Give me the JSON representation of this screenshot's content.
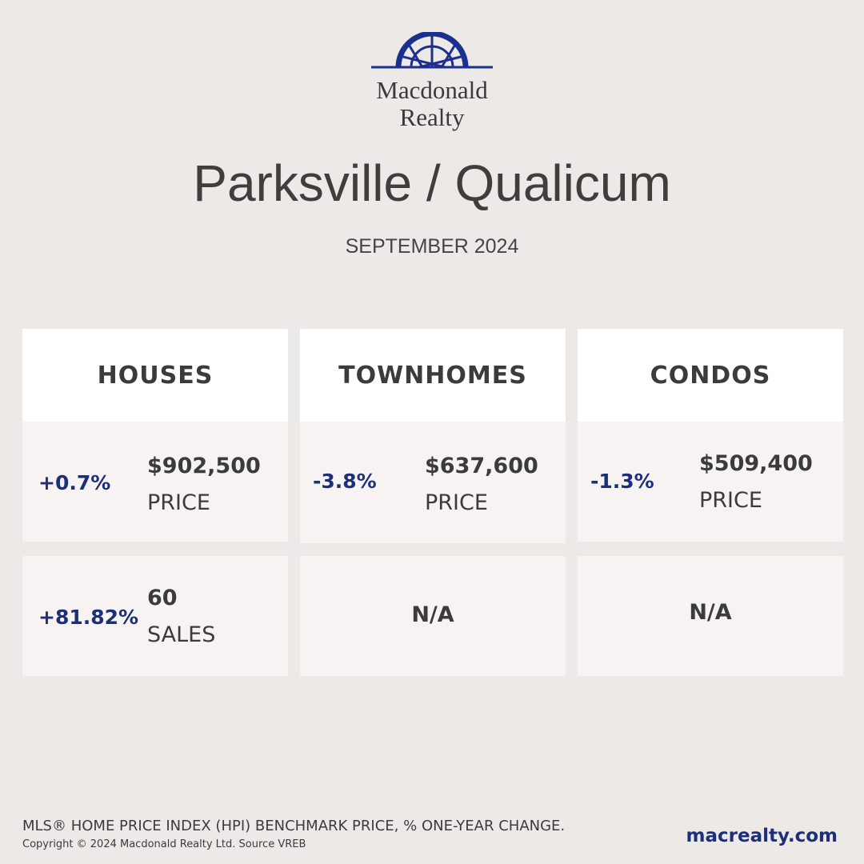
{
  "logo": {
    "line1": "Macdonald",
    "line2": "Realty",
    "color": "#1b2f8f"
  },
  "title": "Parksville / Qualicum",
  "subtitle": "SEPTEMBER 2024",
  "cards": [
    {
      "heading": "HOUSES",
      "price": {
        "change": "+0.7%",
        "value": "$902,500",
        "label": "PRICE"
      },
      "sales": {
        "change": "+81.82%",
        "value": "60",
        "label": "SALES"
      }
    },
    {
      "heading": "TOWNHOMES",
      "price": {
        "change": "-3.8%",
        "value": "$637,600",
        "label": "PRICE"
      },
      "sales": {
        "na": "N/A"
      }
    },
    {
      "heading": "CONDOS",
      "price": {
        "change": "-1.3%",
        "value": "$509,400",
        "label": "PRICE"
      },
      "sales": {
        "na": "N/A"
      }
    }
  ],
  "footer": {
    "note": "MLS® HOME PRICE INDEX (HPI) BENCHMARK PRICE, % ONE-YEAR CHANGE.",
    "copyright": "Copyright © 2024 Macdonald Realty Ltd. Source VREB",
    "website": "macrealty.com"
  },
  "colors": {
    "background": "#ede9e6",
    "accent": "#1b2f7b",
    "text": "#3c3b3b"
  }
}
